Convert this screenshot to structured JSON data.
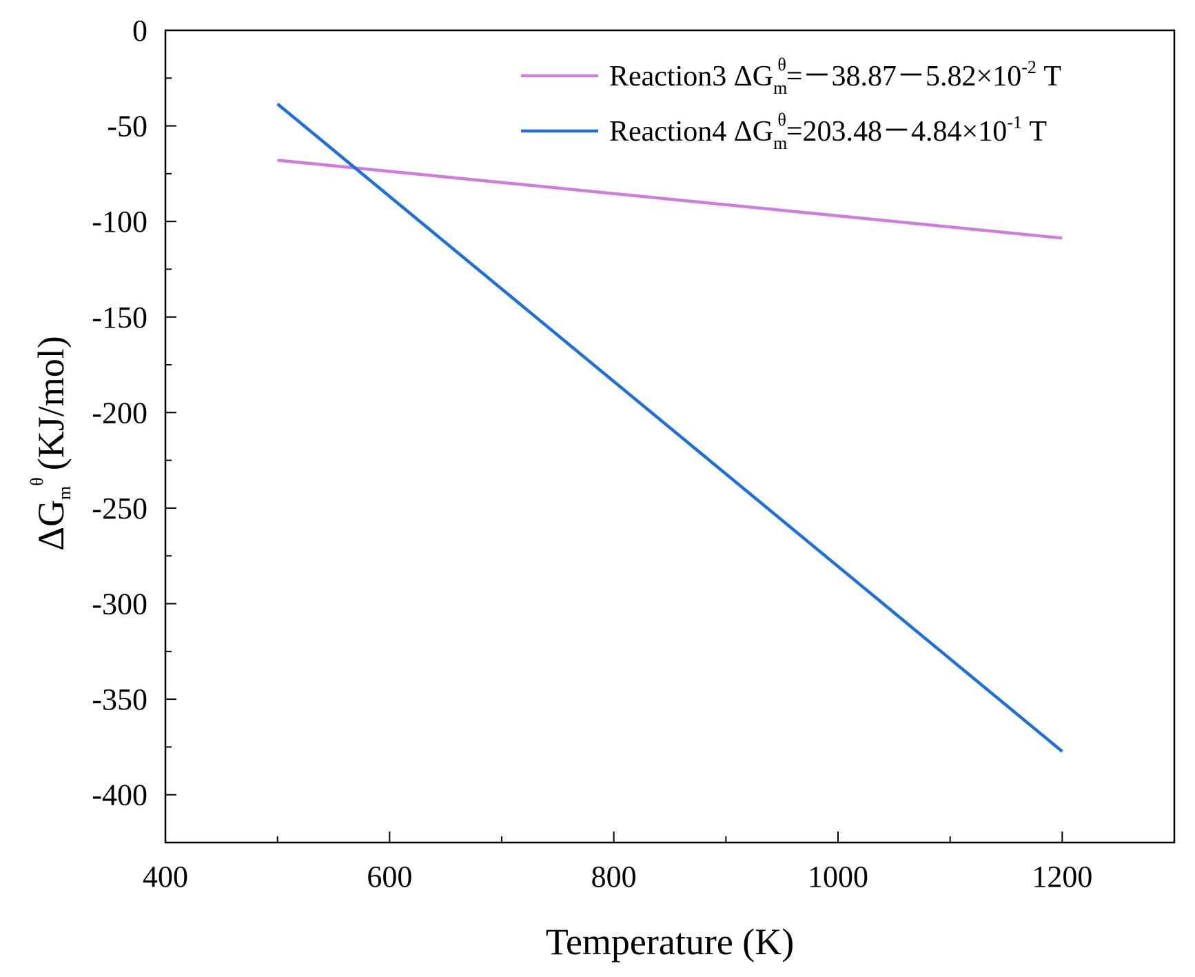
{
  "chart_data": {
    "type": "line",
    "title": "",
    "xlabel": "Temperature (K)",
    "ylabel": {
      "prefix": "ΔG",
      "sub": "m",
      "sup": "θ",
      "unit": "(KJ/mol)"
    },
    "xlim": [
      400,
      1300
    ],
    "ylim": [
      -425,
      0
    ],
    "xticks": [
      400,
      600,
      800,
      1000,
      1200
    ],
    "xtick_labels": [
      "400",
      "600",
      "800",
      "1000",
      "1200"
    ],
    "yticks": [
      0,
      -50,
      -100,
      -150,
      -200,
      -250,
      -300,
      -350,
      -400
    ],
    "ytick_labels": [
      "0",
      "-50",
      "-100",
      "-150",
      "-200",
      "-250",
      "-300",
      "-350",
      "-400"
    ],
    "legend_position": "top-right",
    "series": [
      {
        "name": "Reaction3",
        "color": "#cc7fd9",
        "x": [
          500,
          1200
        ],
        "y": [
          -67.97,
          -108.71
        ],
        "legend": {
          "label": "Reaction3",
          "symbol": "ΔG",
          "sub": "m",
          "sup": "θ",
          "formula": "=－38.87－5.82×10",
          "exp": "-2",
          "tail": " T"
        }
      },
      {
        "name": "Reaction4",
        "color": "#1e6fd9",
        "x": [
          500,
          1200
        ],
        "y": [
          -38.52,
          -377.32
        ],
        "legend": {
          "label": "Reaction4",
          "symbol": "ΔG",
          "sub": "m",
          "sup": "θ",
          "formula": "=203.48－4.84×10",
          "exp": "-1",
          "tail": " T"
        }
      }
    ]
  }
}
